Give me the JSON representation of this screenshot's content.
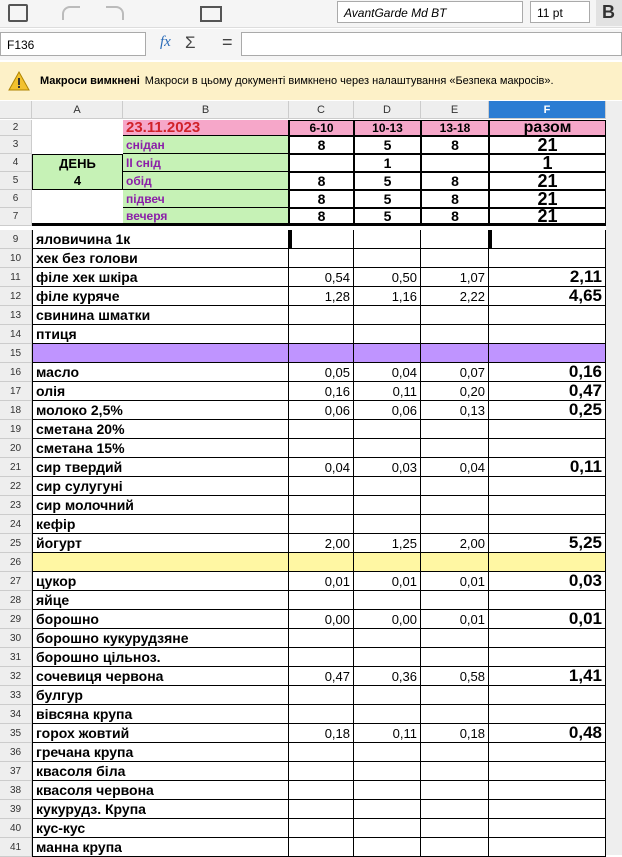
{
  "toolbar": {
    "font_name": "AvantGarde Md BT",
    "font_size": "11 pt",
    "bold_button": "B"
  },
  "formula_bar": {
    "cell_ref": "F136",
    "fx": "fx",
    "sum": "Σ",
    "equals": "="
  },
  "infobar": {
    "title": "Макроси вимкнені",
    "message": "Макроси в цьому документі вимкнено через налаштування «Безпека макросів»."
  },
  "columns": [
    "A",
    "B",
    "C",
    "D",
    "E",
    "F"
  ],
  "rows": [
    {
      "number": 2,
      "cells": [
        null,
        "23.11.2023",
        "6-10",
        "10-13",
        "13-18",
        "разом"
      ]
    },
    {
      "number": 3,
      "cells": [
        null,
        "снідан",
        "8",
        "5",
        "8",
        "21"
      ]
    },
    {
      "number": 4,
      "cells": [
        "ДЕНЬ",
        "ІІ снід",
        null,
        "1",
        null,
        "1"
      ]
    },
    {
      "number": 5,
      "cells": [
        "4",
        "обід",
        "8",
        "5",
        "8",
        "21"
      ]
    },
    {
      "number": 6,
      "cells": [
        null,
        "підвеч",
        "8",
        "5",
        "8",
        "21"
      ]
    },
    {
      "number": 7,
      "cells": [
        null,
        "вечеря",
        "8",
        "5",
        "8",
        "21"
      ]
    },
    {
      "number": 9,
      "cells": [
        "яловичина 1к",
        null,
        null,
        null,
        null,
        null
      ]
    },
    {
      "number": 10,
      "cells": [
        "хек без голови",
        null,
        null,
        null,
        null,
        null
      ]
    },
    {
      "number": 11,
      "cells": [
        "філе хек шкіра",
        null,
        "0,54",
        "0,50",
        "1,07",
        "2,11"
      ]
    },
    {
      "number": 12,
      "cells": [
        "філе куряче",
        null,
        "1,28",
        "1,16",
        "2,22",
        "4,65"
      ]
    },
    {
      "number": 13,
      "cells": [
        "свинина шматки",
        null,
        null,
        null,
        null,
        null
      ]
    },
    {
      "number": 14,
      "cells": [
        "птиця",
        null,
        null,
        null,
        null,
        null
      ]
    },
    {
      "number": 15,
      "fill": "#bf94ff",
      "cells": [
        null,
        null,
        null,
        null,
        null,
        null
      ]
    },
    {
      "number": 16,
      "cells": [
        "масло",
        null,
        "0,05",
        "0,04",
        "0,07",
        "0,16"
      ]
    },
    {
      "number": 17,
      "cells": [
        "олія",
        null,
        "0,16",
        "0,11",
        "0,20",
        "0,47"
      ]
    },
    {
      "number": 18,
      "cells": [
        "молоко 2,5%",
        null,
        "0,06",
        "0,06",
        "0,13",
        "0,25"
      ]
    },
    {
      "number": 19,
      "cells": [
        "сметана 20%",
        null,
        null,
        null,
        null,
        null
      ]
    },
    {
      "number": 20,
      "cells": [
        "сметана 15%",
        null,
        null,
        null,
        null,
        null
      ]
    },
    {
      "number": 21,
      "cells": [
        "сир твердий",
        null,
        "0,04",
        "0,03",
        "0,04",
        "0,11"
      ]
    },
    {
      "number": 22,
      "cells": [
        "сир сулугуні",
        null,
        null,
        null,
        null,
        null
      ]
    },
    {
      "number": 23,
      "cells": [
        "сир молочний",
        null,
        null,
        null,
        null,
        null
      ]
    },
    {
      "number": 24,
      "cells": [
        "кефір",
        null,
        null,
        null,
        null,
        null
      ]
    },
    {
      "number": 25,
      "cells": [
        "йогурт",
        null,
        "2,00",
        "1,25",
        "2,00",
        "5,25"
      ]
    },
    {
      "number": 26,
      "fill": "#fff7a3",
      "cells": [
        null,
        null,
        null,
        null,
        null,
        null
      ]
    },
    {
      "number": 27,
      "cells": [
        "цукор",
        null,
        "0,01",
        "0,01",
        "0,01",
        "0,03"
      ]
    },
    {
      "number": 28,
      "cells": [
        "яйце",
        null,
        null,
        null,
        null,
        null
      ]
    },
    {
      "number": 29,
      "cells": [
        "борошно",
        null,
        "0,00",
        "0,00",
        "0,01",
        "0,01"
      ]
    },
    {
      "number": 30,
      "cells": [
        "борошно кукурудзяне",
        null,
        null,
        null,
        null,
        null
      ]
    },
    {
      "number": 31,
      "cells": [
        "борошно цільноз.",
        null,
        null,
        null,
        null,
        null
      ]
    },
    {
      "number": 32,
      "cells": [
        "сочевиця червона",
        null,
        "0,47",
        "0,36",
        "0,58",
        "1,41"
      ]
    },
    {
      "number": 33,
      "cells": [
        "булгур",
        null,
        null,
        null,
        null,
        null
      ]
    },
    {
      "number": 34,
      "cells": [
        "вівсяна крупа",
        null,
        null,
        null,
        null,
        null
      ]
    },
    {
      "number": 35,
      "cells": [
        "горох жовтий",
        null,
        "0,18",
        "0,11",
        "0,18",
        "0,48"
      ]
    },
    {
      "number": 36,
      "cells": [
        "гречана крупа",
        null,
        null,
        null,
        null,
        null
      ]
    },
    {
      "number": 37,
      "cells": [
        "квасоля біла",
        null,
        null,
        null,
        null,
        null
      ]
    },
    {
      "number": 38,
      "cells": [
        "квасоля червона",
        null,
        null,
        null,
        null,
        null
      ]
    },
    {
      "number": 39,
      "cells": [
        "кукурудз. Крупа",
        null,
        null,
        null,
        null,
        null
      ]
    },
    {
      "number": 40,
      "cells": [
        "кус-кус",
        null,
        null,
        null,
        null,
        null
      ]
    },
    {
      "number": 41,
      "cells": [
        "манна крупа",
        null,
        null,
        null,
        null,
        null
      ]
    }
  ]
}
